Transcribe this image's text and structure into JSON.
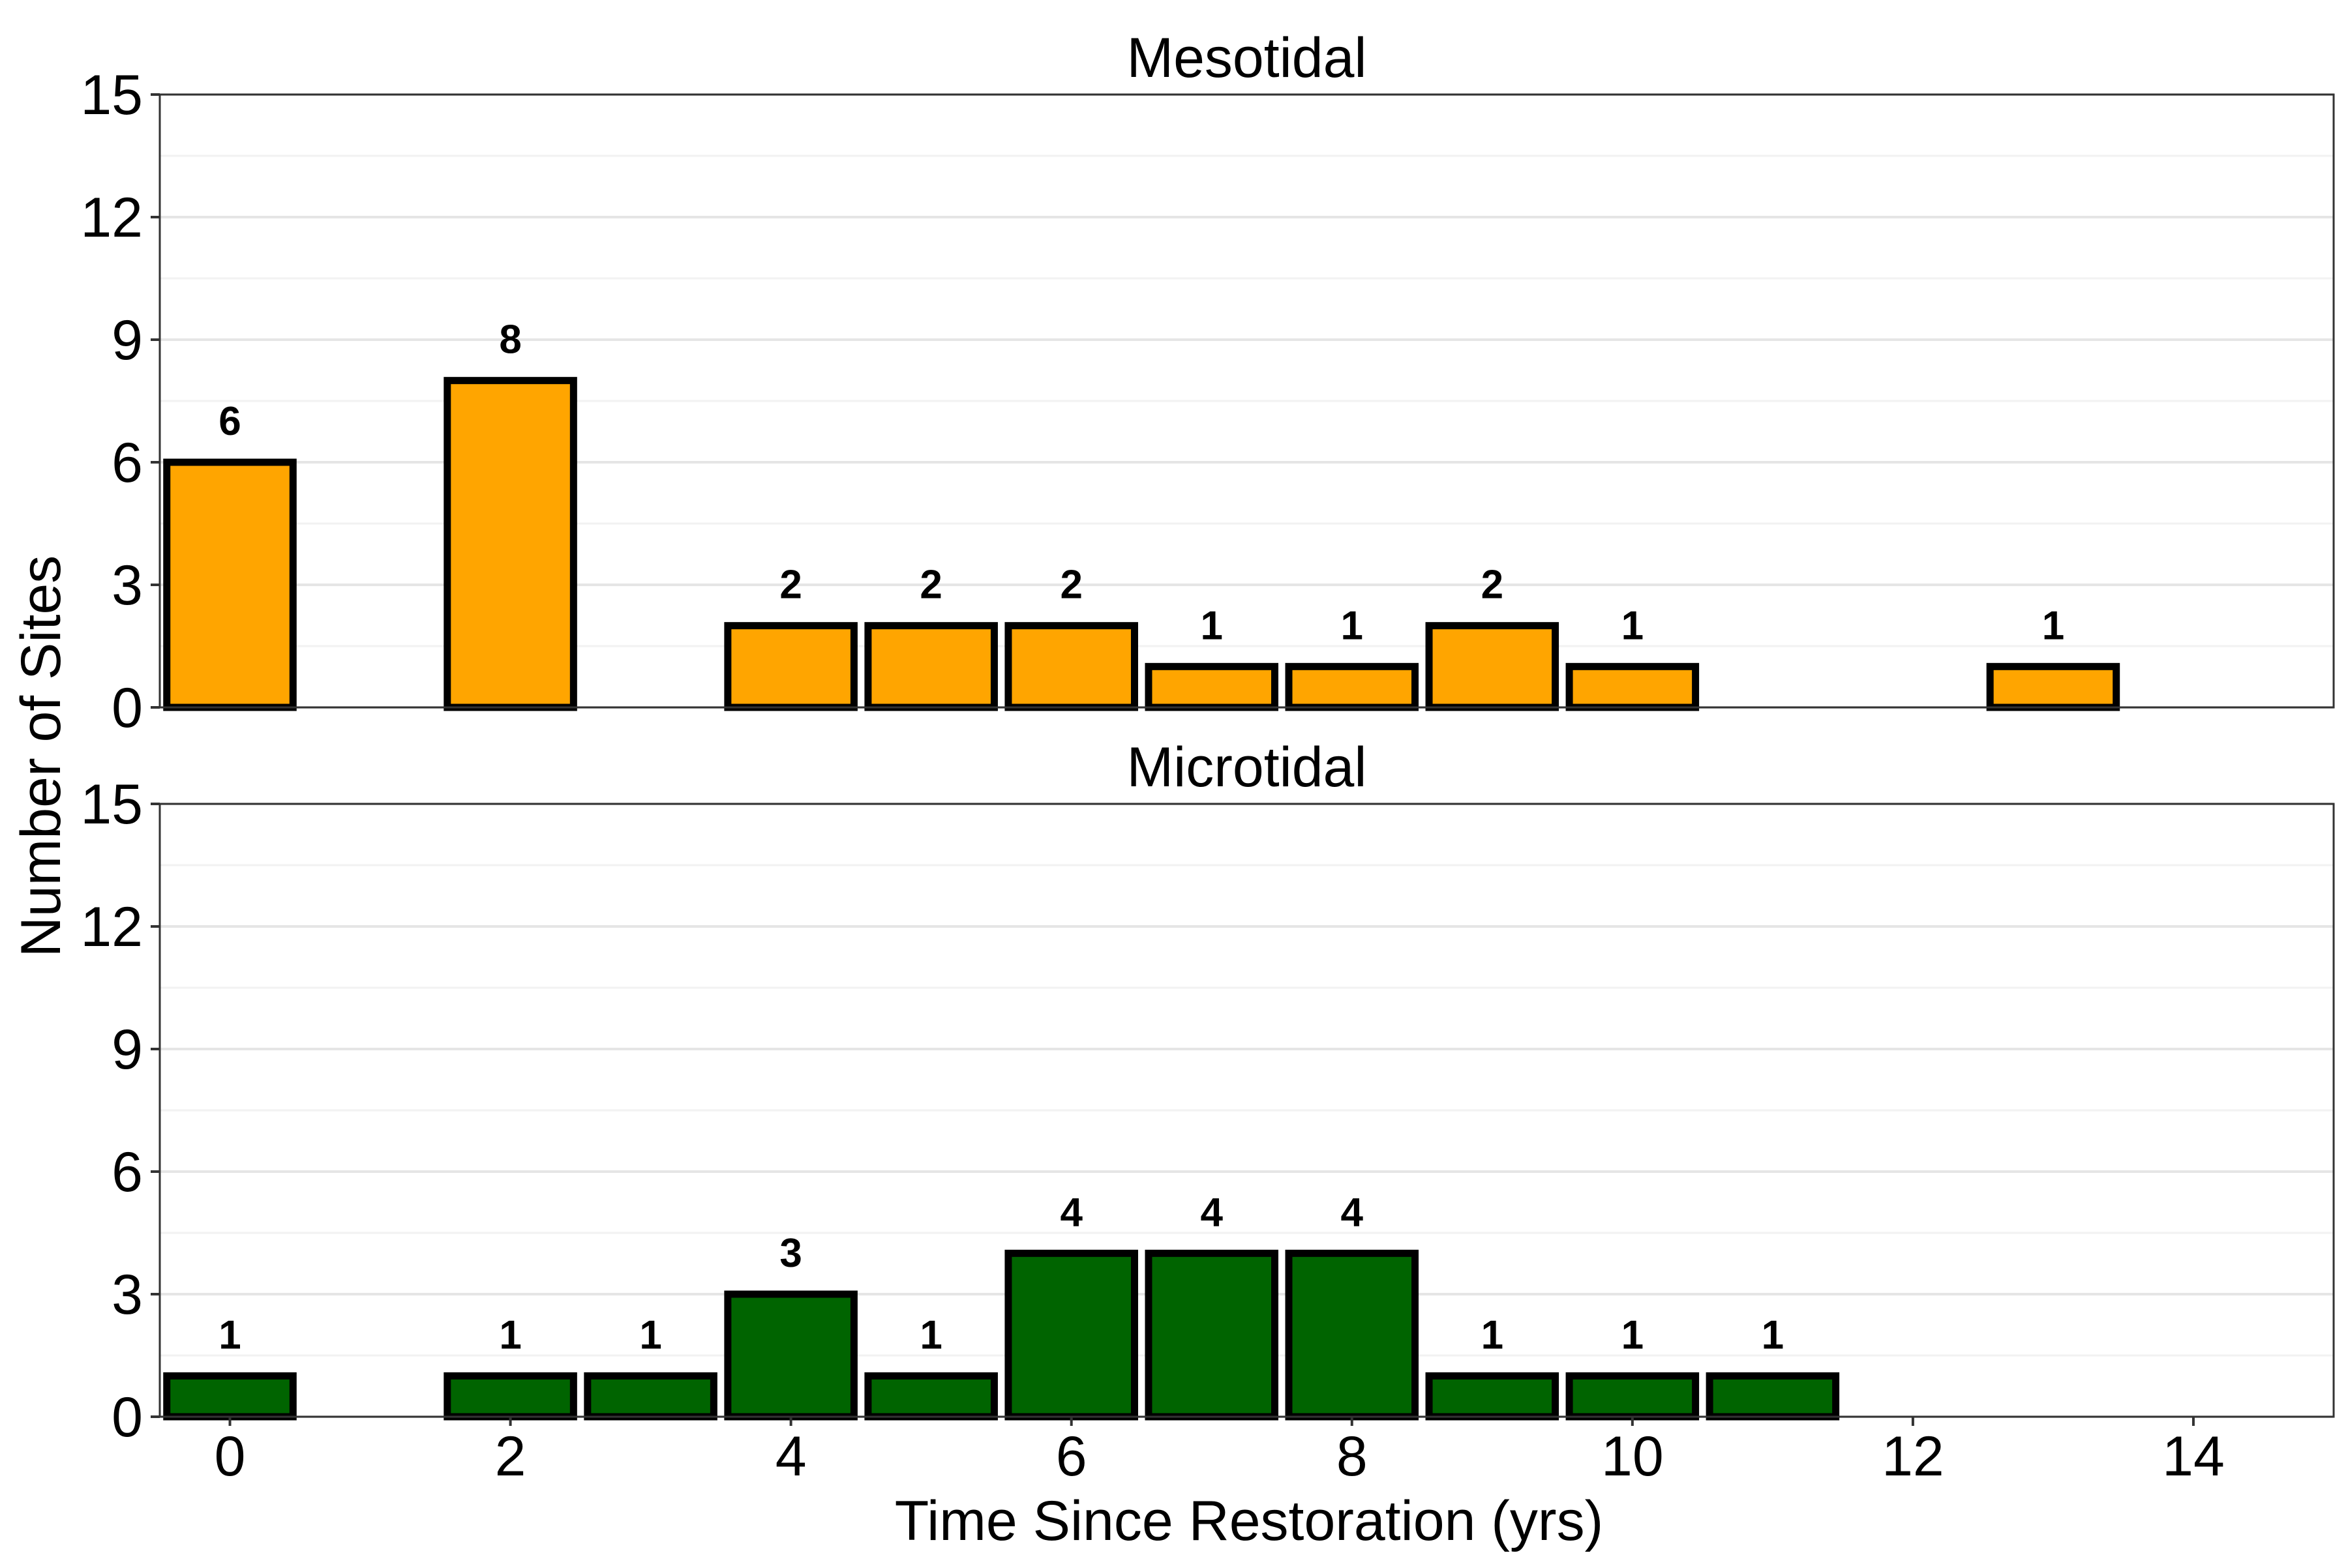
{
  "chart_data": [
    {
      "type": "bar",
      "title": "Mesotidal",
      "x": [
        0,
        2,
        4,
        5,
        6,
        7,
        8,
        9,
        10,
        13
      ],
      "values": [
        6,
        8,
        2,
        2,
        2,
        1,
        1,
        2,
        1,
        1
      ],
      "data_labels": [
        "6",
        "8",
        "2",
        "2",
        "2",
        "1",
        "1",
        "2",
        "1",
        "1"
      ],
      "color": "#FFA500",
      "ylim": [
        0,
        15
      ],
      "yticks": [
        0,
        3,
        6,
        9,
        12,
        15
      ],
      "ytick_labels": [
        "0",
        "3",
        "6",
        "9",
        "12",
        "15"
      ]
    },
    {
      "type": "bar",
      "title": "Microtidal",
      "x": [
        0,
        2,
        3,
        4,
        5,
        6,
        7,
        8,
        9,
        10,
        11
      ],
      "values": [
        1,
        1,
        1,
        3,
        1,
        4,
        4,
        4,
        1,
        1,
        1
      ],
      "data_labels": [
        "1",
        "1",
        "1",
        "3",
        "1",
        "4",
        "4",
        "4",
        "1",
        "1",
        "1"
      ],
      "color": "#006400",
      "ylim": [
        0,
        15
      ],
      "yticks": [
        0,
        3,
        6,
        9,
        12,
        15
      ],
      "ytick_labels": [
        "0",
        "3",
        "6",
        "9",
        "12",
        "15"
      ]
    }
  ],
  "shared": {
    "xlabel": "Time Since Restoration (yrs)",
    "ylabel": "Number of Sites",
    "xlim": [
      -0.5,
      15
    ],
    "xticks": [
      0,
      2,
      4,
      6,
      8,
      10,
      12,
      14
    ],
    "xtick_labels": [
      "0",
      "2",
      "4",
      "6",
      "8",
      "10",
      "12",
      "14"
    ],
    "grid": true
  }
}
